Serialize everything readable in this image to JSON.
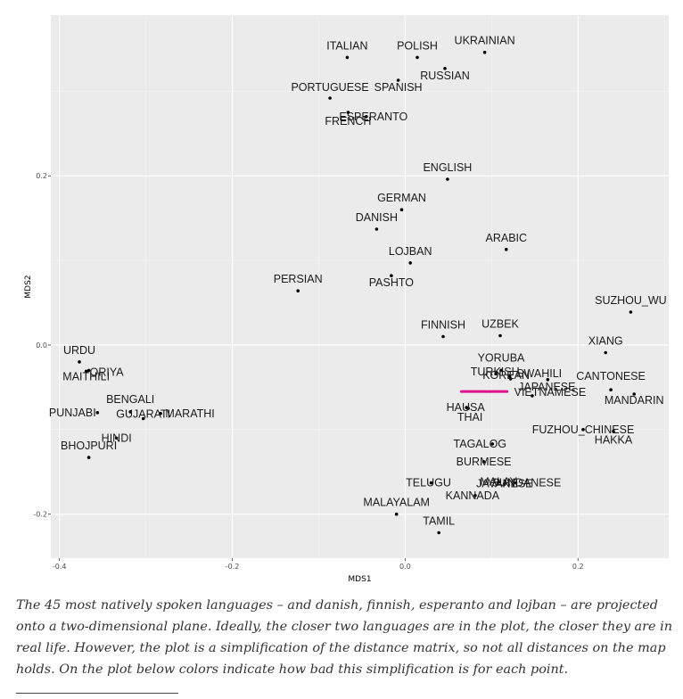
{
  "chart_data": {
    "type": "scatter",
    "xlabel": "MDS1",
    "ylabel": "MDS2",
    "xlim": [
      -0.41,
      0.305
    ],
    "ylim": [
      -0.252,
      0.39
    ],
    "x_ticks": [
      {
        "value": -0.4,
        "label": "-0.4"
      },
      {
        "value": -0.2,
        "label": "-0.2"
      },
      {
        "value": 0.0,
        "label": "0.0"
      },
      {
        "value": 0.2,
        "label": "0.2"
      }
    ],
    "y_ticks": [
      {
        "value": 0.2,
        "label": "0.2"
      },
      {
        "value": 0.0,
        "label": "0.0"
      },
      {
        "value": -0.2,
        "label": "-0.2"
      }
    ],
    "grid": true,
    "colors": {
      "panel": "#ebebeb",
      "grid_major": "#ffffff",
      "grid_minor": "#f5f5f5",
      "point": "#000000",
      "highlight": "#e0138c"
    },
    "highlight": {
      "label": "KOREAN",
      "x_range": [
        0.065,
        0.118
      ],
      "y": -0.055
    },
    "points": [
      {
        "label": "ITALIAN",
        "x": -0.067,
        "y": 0.34
      },
      {
        "label": "POLISH",
        "x": 0.014,
        "y": 0.34
      },
      {
        "label": "UKRAINIAN",
        "x": 0.092,
        "y": 0.346
      },
      {
        "label": "RUSSIAN",
        "x": 0.046,
        "y": 0.327
      },
      {
        "label": "PORTUGUESE",
        "x": -0.087,
        "y": 0.292
      },
      {
        "label": "SPANISH",
        "x": -0.008,
        "y": 0.313
      },
      {
        "label": "ESPERANTO",
        "x": -0.045,
        "y": 0.27
      },
      {
        "label": "FRENCH",
        "x": -0.066,
        "y": 0.275
      },
      {
        "label": "ENGLISH",
        "x": 0.049,
        "y": 0.196
      },
      {
        "label": "GERMAN",
        "x": -0.004,
        "y": 0.16
      },
      {
        "label": "DANISH",
        "x": -0.033,
        "y": 0.137
      },
      {
        "label": "ARABIC",
        "x": 0.117,
        "y": 0.113
      },
      {
        "label": "LOJBAN",
        "x": 0.006,
        "y": 0.097
      },
      {
        "label": "PASHTO",
        "x": -0.016,
        "y": 0.082
      },
      {
        "label": "PERSIAN",
        "x": -0.124,
        "y": 0.064
      },
      {
        "label": "SUZHOU_WU",
        "x": 0.261,
        "y": 0.039
      },
      {
        "label": "FINNISH",
        "x": 0.044,
        "y": 0.01
      },
      {
        "label": "UZBEK",
        "x": 0.11,
        "y": 0.011
      },
      {
        "label": "XIANG",
        "x": 0.232,
        "y": -0.009
      },
      {
        "label": "URDU",
        "x": -0.377,
        "y": -0.02
      },
      {
        "label": "ORIYA",
        "x": -0.366,
        "y": -0.03
      },
      {
        "label": "MAITHILI",
        "x": -0.369,
        "y": -0.031
      },
      {
        "label": "YORUBA",
        "x": 0.111,
        "y": -0.03
      },
      {
        "label": "TURKISH",
        "x": 0.105,
        "y": -0.034
      },
      {
        "label": "SWAHILI",
        "x": 0.121,
        "y": -0.037
      },
      {
        "label": "KOREAN",
        "x": 0.122,
        "y": -0.04
      },
      {
        "label": "CANTONESE",
        "x": 0.238,
        "y": -0.053
      },
      {
        "label": "VIETNAMESE",
        "x": 0.147,
        "y": -0.06
      },
      {
        "label": "MANDARIN",
        "x": 0.265,
        "y": -0.058
      },
      {
        "label": "BENGALI",
        "x": -0.318,
        "y": -0.079
      },
      {
        "label": "MARATHI",
        "x": -0.283,
        "y": -0.081
      },
      {
        "label": "PUNJABI",
        "x": -0.356,
        "y": -0.08
      },
      {
        "label": "GUJARATI",
        "x": -0.303,
        "y": -0.087
      },
      {
        "label": "HAUSA",
        "x": 0.071,
        "y": -0.074
      },
      {
        "label": "THAI",
        "x": 0.073,
        "y": -0.075
      },
      {
        "label": "JAPANESE",
        "x": 0.165,
        "y": -0.041
      },
      {
        "label": "FUZHOU_CHINESE",
        "x": 0.206,
        "y": -0.1
      },
      {
        "label": "HAKKA",
        "x": 0.241,
        "y": -0.102
      },
      {
        "label": "HINDI",
        "x": -0.334,
        "y": -0.11
      },
      {
        "label": "TAGALOG",
        "x": 0.101,
        "y": -0.117
      },
      {
        "label": "BHOJPURI",
        "x": -0.366,
        "y": -0.133
      },
      {
        "label": "BURMESE",
        "x": 0.091,
        "y": -0.138
      },
      {
        "label": "MALAY",
        "x": 0.108,
        "y": -0.162
      },
      {
        "label": "TELUGU",
        "x": 0.03,
        "y": -0.163
      },
      {
        "label": "SUNDANESE",
        "x": 0.128,
        "y": -0.163
      },
      {
        "label": "JAVANESE",
        "x": 0.115,
        "y": -0.164
      },
      {
        "label": "KANNADA",
        "x": 0.081,
        "y": -0.178
      },
      {
        "label": "MALAYALAM",
        "x": -0.01,
        "y": -0.2
      },
      {
        "label": "TAMIL",
        "x": 0.039,
        "y": -0.222
      }
    ]
  },
  "caption": {
    "text": "The 45 most natively spoken languages – and danish, finnish, esperanto and lojban – are projected onto a two-dimensional plane. Ideally, the closer two languages are in the plot, the closer they are in real life. However, the plot is a simplification of the distance matrix, so not all distances on the map holds. On the plot below colors indicate how bad this simplification is for each point."
  }
}
